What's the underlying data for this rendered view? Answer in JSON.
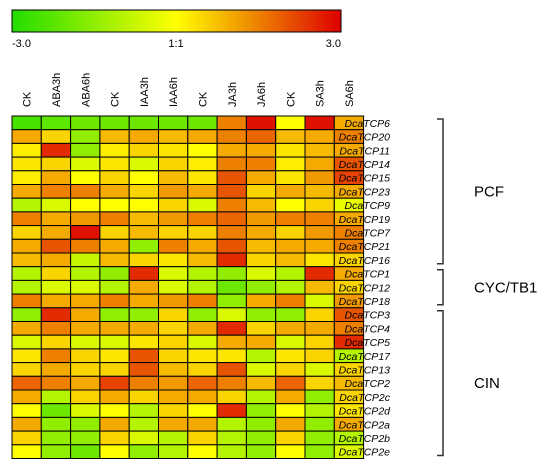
{
  "chart_data": {
    "type": "heatmap",
    "colorbar": {
      "min_label": "-3.0",
      "mid_label": "1:1",
      "max_label": "3.0",
      "vmin": -3.0,
      "vmax": 3.0,
      "low_color": "#22dd00",
      "mid_color": "#ffff00",
      "high_color": "#dd0000"
    },
    "columns": [
      "CK",
      "ABA3h",
      "ABA6h",
      "CK",
      "IAA3h",
      "IAA6h",
      "CK",
      "JA3h",
      "JA6h",
      "CK",
      "SA3h",
      "SA6h"
    ],
    "rows": [
      "DcaTCP6",
      "DcaTCP20",
      "DcaTCP11",
      "DcaTCP14",
      "DcaTCP15",
      "DcaTCP23",
      "DcaTCP9",
      "DcaTCP19",
      "DcaTCP7",
      "DcaTCP21",
      "DcaTCP16",
      "DcaTCP1",
      "DcaTCP12",
      "DcaTCP18",
      "DcaTCP3",
      "DcaTCP4",
      "DcaTCP5",
      "DcaTCP17",
      "DcaTCP13",
      "DcaTCP2",
      "DcaTCP2c",
      "DcaTCP2d",
      "DcaTCP2a",
      "DcaTCP2b",
      "DcaTCP2e"
    ],
    "values": [
      [
        -2.5,
        -2.2,
        -2.0,
        -2.0,
        -2.0,
        -2.0,
        -2.0,
        1.5,
        2.8,
        0.0,
        2.8,
        1.0
      ],
      [
        1.0,
        0.5,
        -1.5,
        0.8,
        1.0,
        0.8,
        1.0,
        1.5,
        1.8,
        0.8,
        1.0,
        1.5
      ],
      [
        0.2,
        2.5,
        -1.5,
        0.2,
        0.5,
        0.3,
        0.0,
        1.0,
        1.0,
        0.3,
        0.8,
        1.0
      ],
      [
        0.3,
        0.5,
        -0.5,
        0.3,
        -0.5,
        0.5,
        0.2,
        1.5,
        1.5,
        0.2,
        1.0,
        2.0
      ],
      [
        0.2,
        1.0,
        0.0,
        0.5,
        0.0,
        0.8,
        0.3,
        2.0,
        1.0,
        0.3,
        1.2,
        2.2
      ],
      [
        1.0,
        1.5,
        1.5,
        1.0,
        0.5,
        1.2,
        1.0,
        2.0,
        0.5,
        1.0,
        0.8,
        1.0
      ],
      [
        -1.0,
        -0.5,
        0.0,
        0.0,
        0.0,
        0.5,
        -0.5,
        1.5,
        0.8,
        0.0,
        0.5,
        -0.3
      ],
      [
        1.5,
        1.0,
        1.2,
        1.5,
        0.8,
        1.2,
        1.5,
        1.8,
        1.2,
        1.5,
        1.5,
        1.0
      ],
      [
        0.5,
        1.0,
        2.8,
        0.5,
        0.8,
        0.5,
        0.5,
        1.5,
        1.0,
        0.5,
        1.2,
        1.5
      ],
      [
        1.0,
        2.0,
        1.5,
        1.0,
        -1.5,
        1.5,
        1.0,
        2.0,
        0.8,
        1.0,
        1.0,
        1.5
      ],
      [
        0.8,
        1.0,
        -0.8,
        0.8,
        0.5,
        0.3,
        0.8,
        2.5,
        0.5,
        0.8,
        0.3,
        0.5
      ],
      [
        -1.0,
        0.5,
        -1.0,
        -1.5,
        2.5,
        -0.5,
        -1.0,
        -1.5,
        -0.5,
        -1.0,
        2.5,
        1.0
      ],
      [
        -1.0,
        -0.5,
        -0.5,
        -1.0,
        1.0,
        -0.5,
        -1.0,
        -2.0,
        -1.5,
        -1.0,
        0.8,
        0.5
      ],
      [
        1.5,
        1.0,
        1.0,
        1.5,
        1.0,
        1.2,
        1.5,
        -1.5,
        1.0,
        1.5,
        -0.5,
        1.2
      ],
      [
        -1.5,
        2.5,
        1.0,
        -1.5,
        -1.5,
        0.5,
        -1.5,
        -0.5,
        -1.5,
        -1.5,
        0.5,
        2.0
      ],
      [
        1.0,
        1.5,
        1.0,
        1.0,
        1.0,
        0.5,
        1.0,
        2.5,
        0.5,
        1.0,
        1.0,
        1.5
      ],
      [
        -0.5,
        0.5,
        -0.5,
        -0.5,
        0.3,
        0.5,
        -0.5,
        1.0,
        1.0,
        -0.5,
        0.5,
        2.5
      ],
      [
        0.3,
        1.5,
        0.5,
        0.3,
        2.0,
        0.5,
        0.3,
        0.3,
        -1.0,
        0.3,
        0.5,
        -1.0
      ],
      [
        0.5,
        1.0,
        0.5,
        0.5,
        2.0,
        0.8,
        0.5,
        2.0,
        -0.5,
        0.5,
        -0.5,
        0.5
      ],
      [
        1.8,
        1.5,
        1.0,
        2.2,
        1.5,
        1.2,
        1.8,
        1.5,
        0.8,
        1.8,
        0.5,
        0.8
      ],
      [
        1.0,
        -1.0,
        0.5,
        1.0,
        0.5,
        1.0,
        1.0,
        0.5,
        -1.0,
        1.0,
        -1.5,
        0.5
      ],
      [
        0.0,
        -2.0,
        -0.5,
        0.0,
        -1.0,
        0.5,
        0.0,
        2.5,
        -1.5,
        0.0,
        -1.0,
        0.3
      ],
      [
        1.0,
        -1.5,
        -1.5,
        1.0,
        -1.0,
        1.0,
        1.0,
        -1.0,
        -1.5,
        1.0,
        -1.5,
        1.0
      ],
      [
        0.5,
        -1.5,
        -1.5,
        0.5,
        -0.5,
        -1.0,
        0.5,
        -1.0,
        -1.5,
        0.5,
        -1.5,
        -1.0
      ],
      [
        0.0,
        -1.5,
        -2.0,
        0.0,
        -1.5,
        -1.0,
        0.0,
        -1.0,
        -1.5,
        0.0,
        -1.5,
        -0.5
      ]
    ],
    "groups": [
      {
        "name": "PCF",
        "start_row": 0,
        "end_row": 10
      },
      {
        "name": "CYC/TB1",
        "start_row": 11,
        "end_row": 13
      },
      {
        "name": "CIN",
        "start_row": 14,
        "end_row": 24
      }
    ]
  }
}
